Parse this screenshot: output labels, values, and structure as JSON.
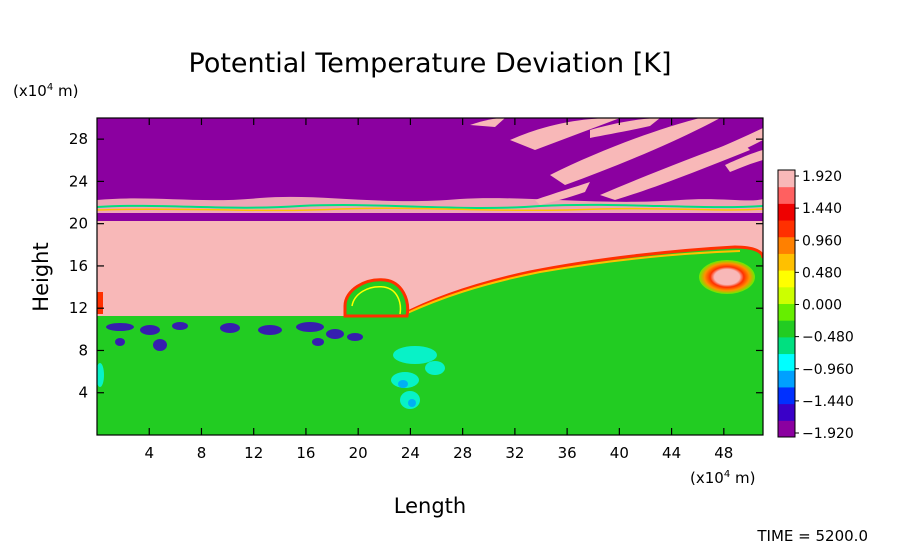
{
  "chart_data": {
    "type": "heatmap",
    "title": "Potential Temperature Deviation [K]",
    "xlabel": "Length",
    "ylabel": "Height",
    "x_unit_prefix": "(x10",
    "x_unit_exp": "4",
    "x_unit_suffix": " m)",
    "y_unit_prefix": "(x10",
    "y_unit_exp": "4",
    "y_unit_suffix": " m)",
    "xlim": [
      0,
      51
    ],
    "ylim": [
      0,
      30
    ],
    "x_ticks": [
      4,
      8,
      12,
      16,
      20,
      24,
      28,
      32,
      36,
      40,
      44,
      48
    ],
    "y_ticks": [
      4,
      8,
      12,
      16,
      20,
      24,
      28
    ],
    "time_label": "TIME = 5200.0",
    "colorbar": {
      "ticks": [
        "1.920",
        "1.440",
        "0.960",
        "0.480",
        "0.000",
        "-0.480",
        "-0.960",
        "-1.440",
        "-1.920"
      ],
      "range": [
        -1.92,
        1.92
      ],
      "colors": [
        "#8b00a0",
        "#3a00c8",
        "#0030ff",
        "#00a0ff",
        "#00ffff",
        "#00e080",
        "#22cc22",
        "#66ee00",
        "#ccff00",
        "#ffff00",
        "#ffc000",
        "#ff8000",
        "#ff3000",
        "#ee0000",
        "#ff6060",
        "#f8b8b8"
      ]
    },
    "regions": {
      "upper_layer_value": -1.92,
      "warm_band_value": 1.92,
      "lower_layer_value": 0.0,
      "warm_band_y": [
        11.5,
        20.5
      ],
      "cold_strip_y": [
        20.4,
        21.2
      ],
      "lower_layer_y": [
        0,
        11.5
      ]
    }
  }
}
